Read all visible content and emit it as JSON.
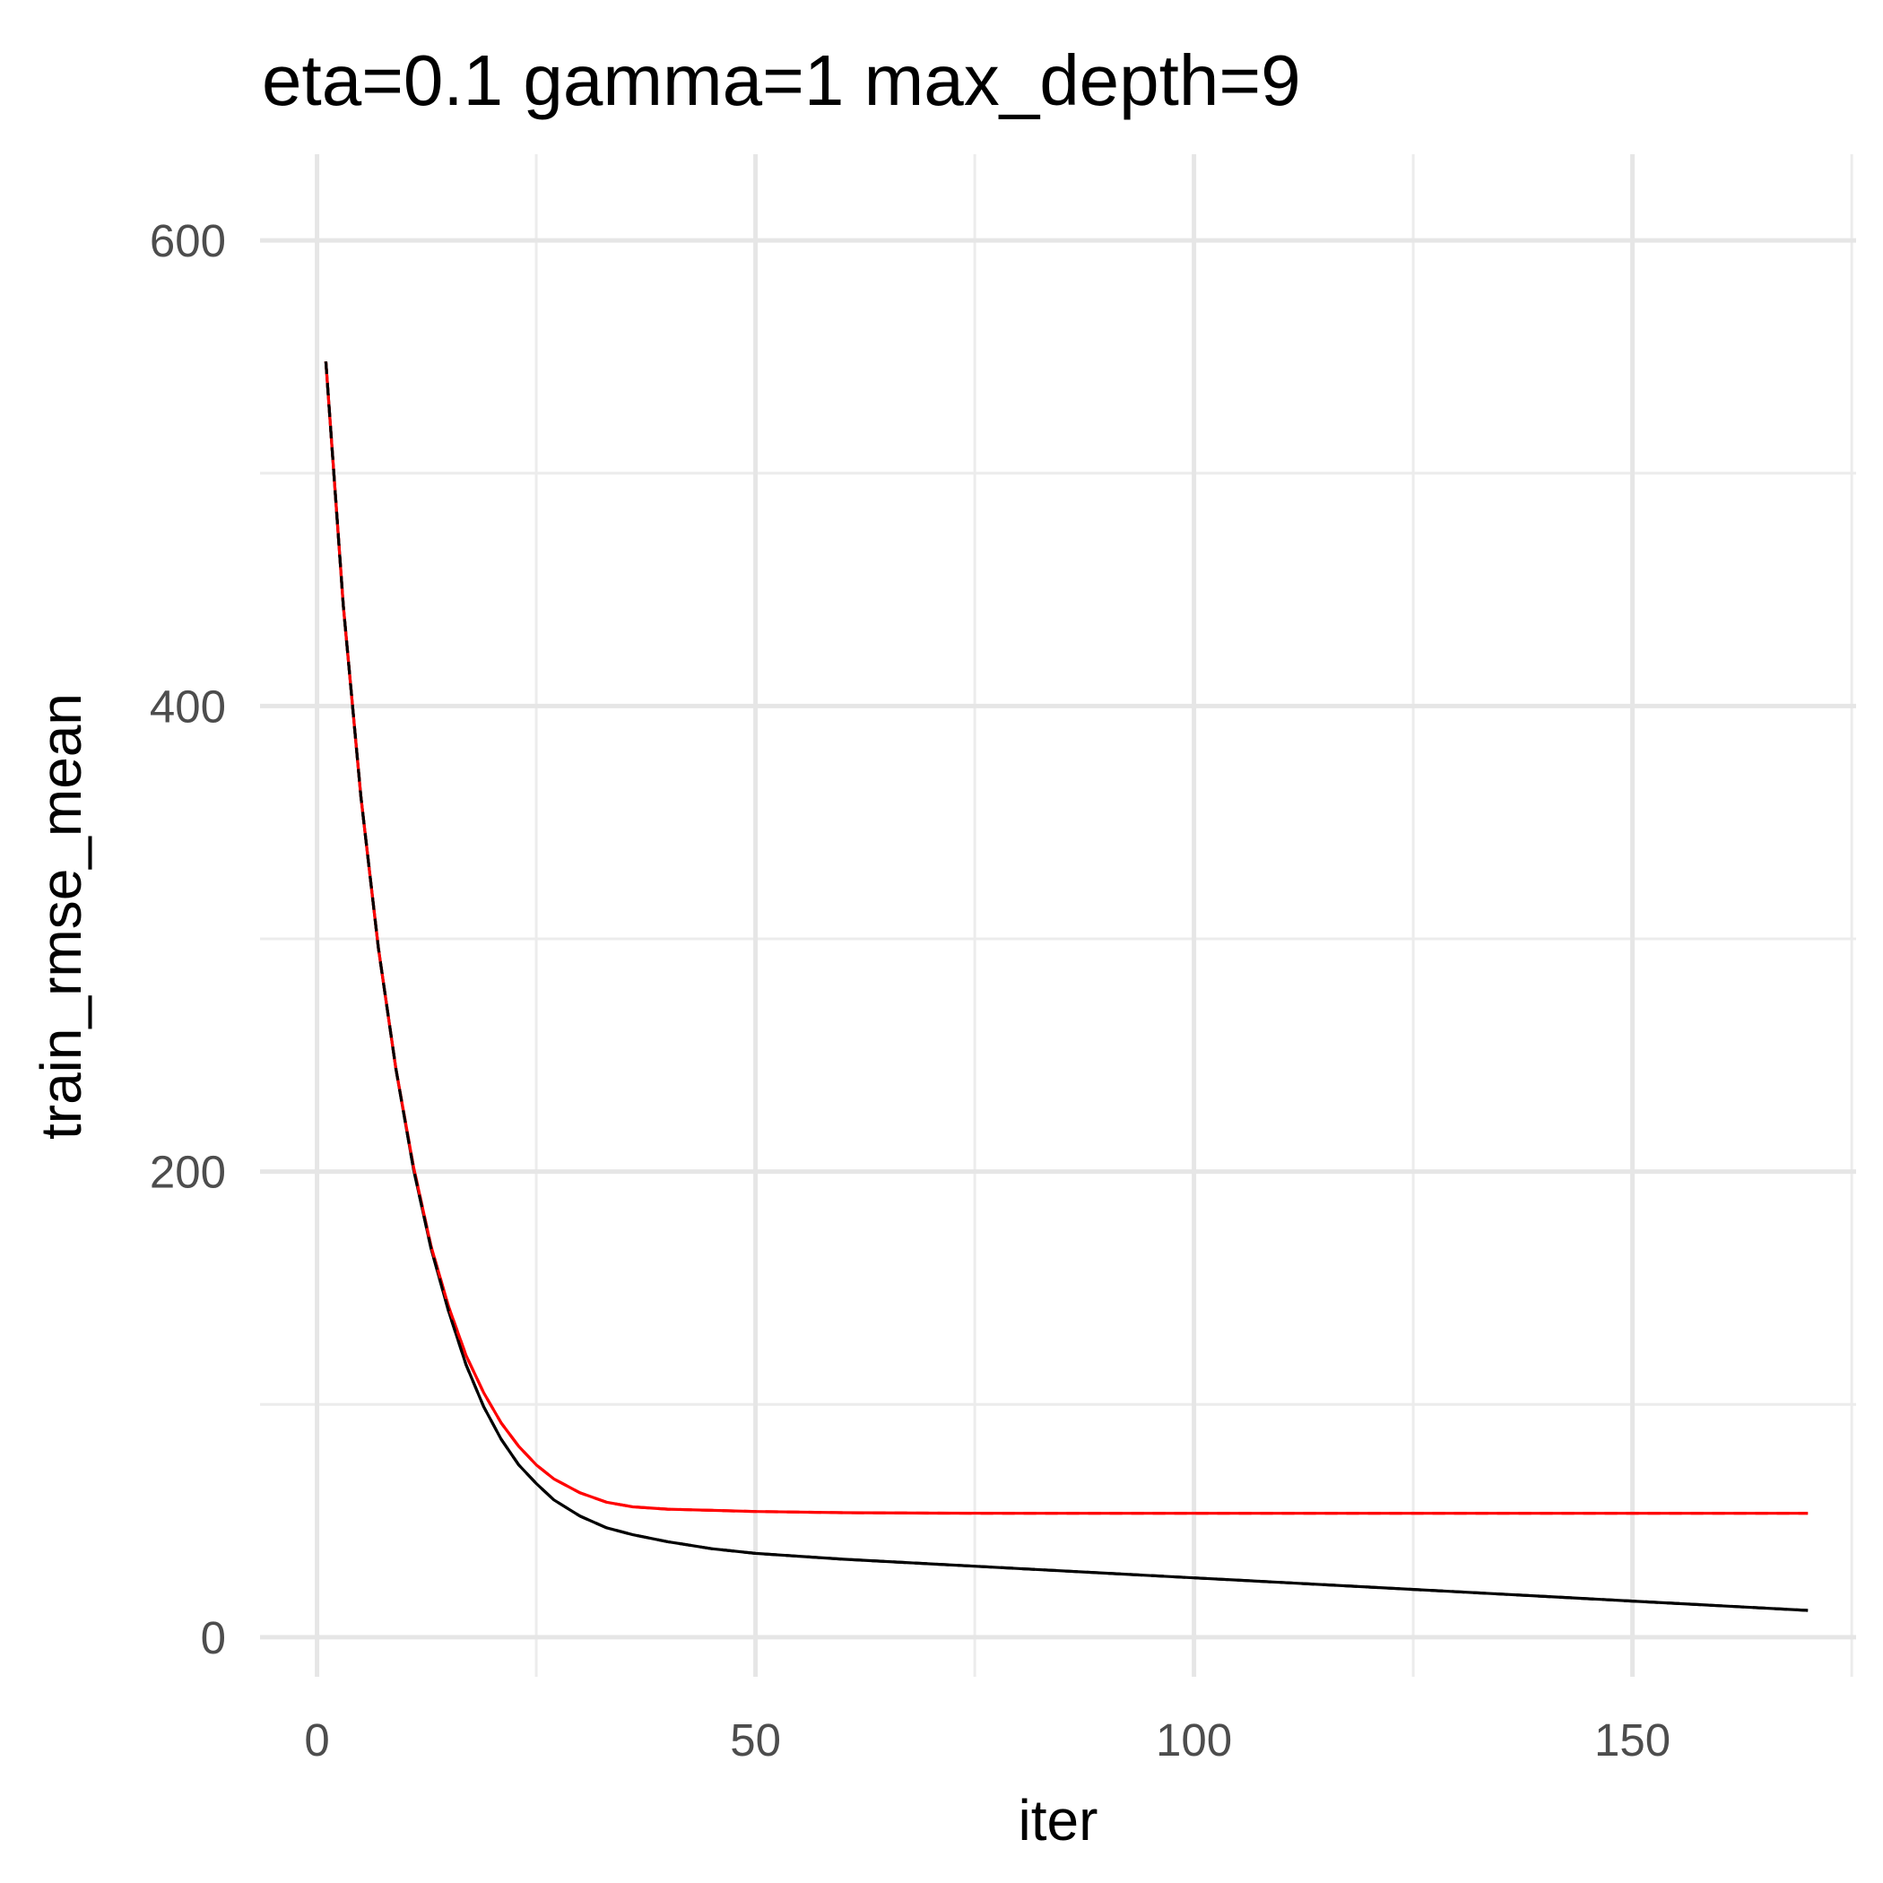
{
  "chart_data": {
    "type": "line",
    "title": "eta=0.1 gamma=1 max_depth=9",
    "xlabel": "iter",
    "ylabel": "train_rmse_mean",
    "xlim": [
      -6.5,
      175.5
    ],
    "ylim": [
      -17,
      637
    ],
    "x_ticks": [
      0,
      50,
      100,
      150
    ],
    "x_tick_labels": [
      "0",
      "50",
      "100",
      "150"
    ],
    "x_minor_ticks": [
      25,
      75,
      125,
      175
    ],
    "y_ticks": [
      0,
      200,
      400,
      600
    ],
    "y_tick_labels": [
      "0",
      "200",
      "400",
      "600"
    ],
    "y_minor_ticks": [
      100,
      300,
      500
    ],
    "grid": true,
    "legend": "none",
    "series": [
      {
        "color": "#000000",
        "line_style": "solid",
        "x": [
          1,
          3,
          5,
          7,
          9,
          11,
          13,
          15,
          17,
          19,
          21,
          23,
          25,
          27,
          30,
          33,
          36,
          40,
          45,
          50,
          60,
          70,
          80,
          90,
          100,
          110,
          120,
          130,
          140,
          150,
          160,
          170
        ],
        "y": [
          548,
          443,
          361,
          296,
          244,
          201,
          167,
          140,
          117,
          99,
          85,
          74,
          66,
          59,
          52,
          47,
          44,
          41,
          38,
          36,
          33.5,
          31.5,
          29.5,
          27.5,
          25.5,
          23.5,
          21.5,
          19.5,
          17.5,
          15.5,
          13.5,
          11.5
        ]
      },
      {
        "color": "#ff0000",
        "line_style": "solid",
        "x": [
          1,
          3,
          5,
          7,
          9,
          11,
          13,
          15,
          17,
          19,
          21,
          23,
          25,
          27,
          30,
          33,
          36,
          40,
          45,
          50,
          60,
          70,
          80,
          90,
          100,
          110,
          120,
          130,
          140,
          150,
          160,
          170
        ],
        "y": [
          548,
          443,
          361,
          296,
          244,
          202,
          168,
          142,
          121,
          105,
          92,
          82,
          74,
          68,
          62,
          58,
          56,
          55,
          54.5,
          54,
          53.5,
          53.3,
          53.2,
          53.2,
          53.2,
          53.2,
          53.2,
          53.2,
          53.2,
          53.2,
          53.2,
          53.2
        ]
      },
      {
        "color": "#ff0000",
        "line_style": "dashed",
        "x": [
          1,
          3,
          5,
          7,
          9,
          11,
          13,
          15,
          17,
          19,
          21,
          23,
          25,
          27,
          30,
          33,
          36,
          40,
          45,
          50,
          60,
          70,
          80,
          90,
          100,
          110,
          120,
          130,
          140,
          150,
          160,
          170
        ],
        "y": [
          548,
          443,
          361,
          296,
          244,
          202,
          168,
          142,
          121,
          105,
          92,
          82,
          74,
          68,
          62,
          58,
          56,
          55,
          54.5,
          54,
          53.5,
          53.3,
          53.2,
          53.2,
          53.2,
          53.2,
          53.2,
          53.2,
          53.2,
          53.2,
          53.2,
          53.2
        ]
      },
      {
        "color": "#000000",
        "line_style": "dashed",
        "x": [
          1,
          3,
          5,
          7,
          9,
          11,
          13,
          15,
          17,
          19,
          21,
          23,
          25,
          27,
          30,
          33,
          36,
          40,
          45,
          50,
          60,
          70,
          80,
          90,
          100,
          110,
          120,
          130,
          140,
          150,
          160,
          170
        ],
        "y": [
          548,
          443,
          361,
          296,
          244,
          201,
          167,
          140,
          117,
          99,
          85,
          74,
          66,
          59,
          52,
          47,
          44,
          41,
          38,
          36,
          33.5,
          31.5,
          29.5,
          27.5,
          25.5,
          23.5,
          21.5,
          19.5,
          17.5,
          15.5,
          13.5,
          11.5
        ]
      }
    ]
  }
}
